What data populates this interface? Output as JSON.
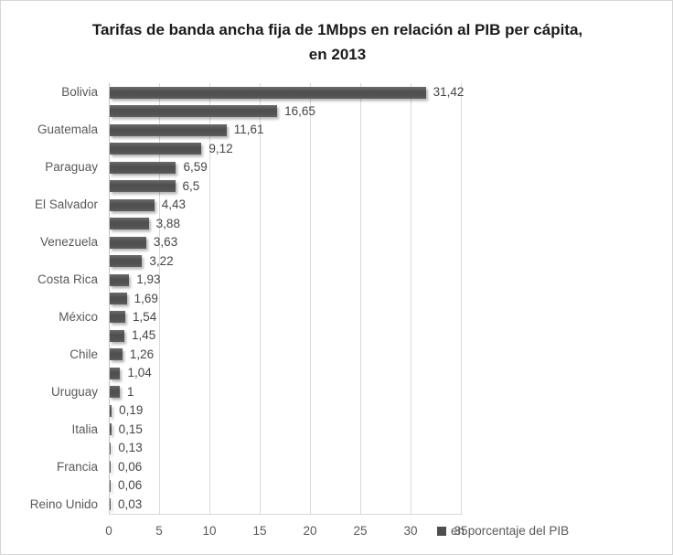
{
  "chart": {
    "title_line1": "Tarifas de banda ancha fija de 1Mbps en relación al PIB per cápita,",
    "title_line2": "en 2013",
    "legend_label": "en porcentaje del PIB",
    "colors": {
      "bar": "#565656",
      "gridline": "#d9d9d9",
      "axis_text": "#595959",
      "value_text": "#454545",
      "title_text": "#1a1a1a"
    }
  },
  "chart_data": {
    "type": "bar",
    "orientation": "horizontal",
    "title": "Tarifas de banda ancha fija de 1Mbps en relación al PIB per cápita, en 2013",
    "xlabel": "",
    "ylabel": "",
    "xlim": [
      0,
      35
    ],
    "x_ticks": [
      0,
      5,
      10,
      15,
      20,
      25,
      30,
      35
    ],
    "grid": true,
    "legend_position": "bottom-right",
    "legend_entries": [
      "en porcentaje del PIB"
    ],
    "bars": [
      {
        "label": "Bolivia",
        "value": 31.42,
        "value_label": "31,42"
      },
      {
        "label": "",
        "value": 16.65,
        "value_label": "16,65"
      },
      {
        "label": "Guatemala",
        "value": 11.61,
        "value_label": "11,61"
      },
      {
        "label": "",
        "value": 9.12,
        "value_label": "9,12"
      },
      {
        "label": "Paraguay",
        "value": 6.59,
        "value_label": "6,59"
      },
      {
        "label": "",
        "value": 6.5,
        "value_label": "6,5"
      },
      {
        "label": "El Salvador",
        "value": 4.43,
        "value_label": "4,43"
      },
      {
        "label": "",
        "value": 3.88,
        "value_label": "3,88"
      },
      {
        "label": "Venezuela",
        "value": 3.63,
        "value_label": "3,63"
      },
      {
        "label": "",
        "value": 3.22,
        "value_label": "3,22"
      },
      {
        "label": "Costa Rica",
        "value": 1.93,
        "value_label": "1,93"
      },
      {
        "label": "",
        "value": 1.69,
        "value_label": "1,69"
      },
      {
        "label": "México",
        "value": 1.54,
        "value_label": "1,54"
      },
      {
        "label": "",
        "value": 1.45,
        "value_label": "1,45"
      },
      {
        "label": "Chile",
        "value": 1.26,
        "value_label": "1,26"
      },
      {
        "label": "",
        "value": 1.04,
        "value_label": "1,04"
      },
      {
        "label": "Uruguay",
        "value": 1,
        "value_label": "1"
      },
      {
        "label": "",
        "value": 0.19,
        "value_label": "0,19"
      },
      {
        "label": "Italia",
        "value": 0.15,
        "value_label": "0,15"
      },
      {
        "label": "",
        "value": 0.13,
        "value_label": "0,13"
      },
      {
        "label": "Francia",
        "value": 0.06,
        "value_label": "0,06"
      },
      {
        "label": "",
        "value": 0.06,
        "value_label": "0,06"
      },
      {
        "label": "Reino Unido",
        "value": 0.03,
        "value_label": "0,03"
      }
    ]
  }
}
